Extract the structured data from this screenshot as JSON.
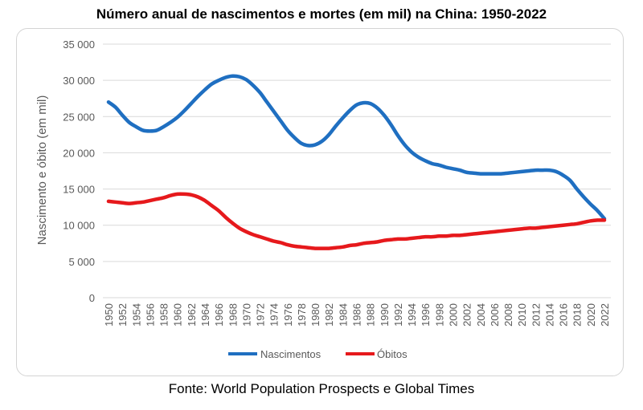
{
  "title": "Número anual de nascimentos e mortes (em mil) na China: 1950-2022",
  "source": "Fonte: World Population Prospects e Global Times",
  "chart_data": {
    "type": "line",
    "title": "Número anual de nascimentos e mortes (em mil) na China: 1950-2022",
    "xlabel": "",
    "ylabel": "Nascimento e óbito (em mil)",
    "ylim": [
      0,
      35000
    ],
    "yticks": [
      0,
      5000,
      10000,
      15000,
      20000,
      25000,
      30000,
      35000
    ],
    "ytick_labels": [
      "0",
      "5 000",
      "10 000",
      "15 000",
      "20 000",
      "25 000",
      "30 000",
      "35 000"
    ],
    "x_range": [
      1950,
      2022
    ],
    "xtick_labels": [
      "1950",
      "1952",
      "1954",
      "1956",
      "1958",
      "1960",
      "1962",
      "1964",
      "1966",
      "1968",
      "1970",
      "1972",
      "1974",
      "1976",
      "1978",
      "1980",
      "1982",
      "1984",
      "1986",
      "1988",
      "1990",
      "1992",
      "1994",
      "1996",
      "1998",
      "2000",
      "2002",
      "2004",
      "2006",
      "2008",
      "2010",
      "2012",
      "2014",
      "2016",
      "2018",
      "2020",
      "2022"
    ],
    "grid": "horizontal",
    "legend_position": "bottom",
    "series": [
      {
        "name": "Nascimentos",
        "color": "#1f6fc1",
        "points": [
          [
            1950,
            27000
          ],
          [
            1951,
            26300
          ],
          [
            1952,
            25200
          ],
          [
            1953,
            24200
          ],
          [
            1954,
            23600
          ],
          [
            1955,
            23100
          ],
          [
            1956,
            23000
          ],
          [
            1957,
            23100
          ],
          [
            1958,
            23600
          ],
          [
            1959,
            24200
          ],
          [
            1960,
            24900
          ],
          [
            1961,
            25800
          ],
          [
            1962,
            26800
          ],
          [
            1963,
            27800
          ],
          [
            1964,
            28700
          ],
          [
            1965,
            29500
          ],
          [
            1966,
            30000
          ],
          [
            1967,
            30400
          ],
          [
            1968,
            30600
          ],
          [
            1969,
            30500
          ],
          [
            1970,
            30100
          ],
          [
            1971,
            29300
          ],
          [
            1972,
            28300
          ],
          [
            1973,
            27000
          ],
          [
            1974,
            25700
          ],
          [
            1975,
            24400
          ],
          [
            1976,
            23100
          ],
          [
            1977,
            22100
          ],
          [
            1978,
            21300
          ],
          [
            1979,
            21000
          ],
          [
            1980,
            21100
          ],
          [
            1981,
            21600
          ],
          [
            1982,
            22500
          ],
          [
            1983,
            23700
          ],
          [
            1984,
            24800
          ],
          [
            1985,
            25800
          ],
          [
            1986,
            26600
          ],
          [
            1987,
            26900
          ],
          [
            1988,
            26800
          ],
          [
            1989,
            26200
          ],
          [
            1990,
            25200
          ],
          [
            1991,
            23900
          ],
          [
            1992,
            22400
          ],
          [
            1993,
            21100
          ],
          [
            1994,
            20100
          ],
          [
            1995,
            19400
          ],
          [
            1996,
            18900
          ],
          [
            1997,
            18500
          ],
          [
            1998,
            18300
          ],
          [
            1999,
            18000
          ],
          [
            2000,
            17800
          ],
          [
            2001,
            17600
          ],
          [
            2002,
            17300
          ],
          [
            2003,
            17200
          ],
          [
            2004,
            17100
          ],
          [
            2005,
            17100
          ],
          [
            2006,
            17100
          ],
          [
            2007,
            17100
          ],
          [
            2008,
            17200
          ],
          [
            2009,
            17300
          ],
          [
            2010,
            17400
          ],
          [
            2011,
            17500
          ],
          [
            2012,
            17600
          ],
          [
            2013,
            17600
          ],
          [
            2014,
            17600
          ],
          [
            2015,
            17400
          ],
          [
            2016,
            16900
          ],
          [
            2017,
            16200
          ],
          [
            2018,
            15000
          ],
          [
            2019,
            13900
          ],
          [
            2020,
            12900
          ],
          [
            2021,
            12000
          ],
          [
            2022,
            10900
          ]
        ]
      },
      {
        "name": "Óbitos",
        "color": "#e6191c",
        "points": [
          [
            1950,
            13300
          ],
          [
            1951,
            13200
          ],
          [
            1952,
            13100
          ],
          [
            1953,
            13000
          ],
          [
            1954,
            13100
          ],
          [
            1955,
            13200
          ],
          [
            1956,
            13400
          ],
          [
            1957,
            13600
          ],
          [
            1958,
            13800
          ],
          [
            1959,
            14100
          ],
          [
            1960,
            14300
          ],
          [
            1961,
            14300
          ],
          [
            1962,
            14200
          ],
          [
            1963,
            13900
          ],
          [
            1964,
            13400
          ],
          [
            1965,
            12700
          ],
          [
            1966,
            12000
          ],
          [
            1967,
            11100
          ],
          [
            1968,
            10300
          ],
          [
            1969,
            9600
          ],
          [
            1970,
            9100
          ],
          [
            1971,
            8700
          ],
          [
            1972,
            8400
          ],
          [
            1973,
            8100
          ],
          [
            1974,
            7800
          ],
          [
            1975,
            7600
          ],
          [
            1976,
            7300
          ],
          [
            1977,
            7100
          ],
          [
            1978,
            7000
          ],
          [
            1979,
            6900
          ],
          [
            1980,
            6800
          ],
          [
            1981,
            6800
          ],
          [
            1982,
            6800
          ],
          [
            1983,
            6900
          ],
          [
            1984,
            7000
          ],
          [
            1985,
            7200
          ],
          [
            1986,
            7300
          ],
          [
            1987,
            7500
          ],
          [
            1988,
            7600
          ],
          [
            1989,
            7700
          ],
          [
            1990,
            7900
          ],
          [
            1991,
            8000
          ],
          [
            1992,
            8100
          ],
          [
            1993,
            8100
          ],
          [
            1994,
            8200
          ],
          [
            1995,
            8300
          ],
          [
            1996,
            8400
          ],
          [
            1997,
            8400
          ],
          [
            1998,
            8500
          ],
          [
            1999,
            8500
          ],
          [
            2000,
            8600
          ],
          [
            2001,
            8600
          ],
          [
            2002,
            8700
          ],
          [
            2003,
            8800
          ],
          [
            2004,
            8900
          ],
          [
            2005,
            9000
          ],
          [
            2006,
            9100
          ],
          [
            2007,
            9200
          ],
          [
            2008,
            9300
          ],
          [
            2009,
            9400
          ],
          [
            2010,
            9500
          ],
          [
            2011,
            9600
          ],
          [
            2012,
            9600
          ],
          [
            2013,
            9700
          ],
          [
            2014,
            9800
          ],
          [
            2015,
            9900
          ],
          [
            2016,
            10000
          ],
          [
            2017,
            10100
          ],
          [
            2018,
            10200
          ],
          [
            2019,
            10400
          ],
          [
            2020,
            10600
          ],
          [
            2021,
            10700
          ],
          [
            2022,
            10700
          ]
        ]
      }
    ]
  }
}
